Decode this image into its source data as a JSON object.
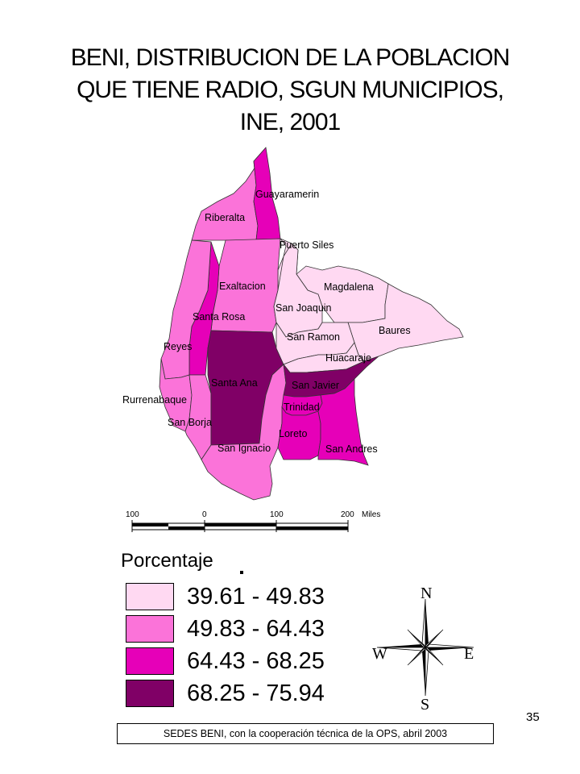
{
  "title": {
    "line1": "BENI, DISTRIBUCION DE LA POBLACION",
    "line2": "QUE TIENE RADIO, SGUN MUNICIPIOS,",
    "line3": "INE, 2001"
  },
  "colors": {
    "class1": "#ffd9f2",
    "class2": "#fb73d9",
    "class3": "#e600b8",
    "class4": "#800066",
    "outline": "#333333"
  },
  "municipalities": [
    {
      "name": "Guayaramerin",
      "class": 3
    },
    {
      "name": "Riberalta",
      "class": 2
    },
    {
      "name": "Puerto Siles",
      "class": 1
    },
    {
      "name": "Exaltacion",
      "class": 2
    },
    {
      "name": "Magdalena",
      "class": 1
    },
    {
      "name": "San Joaquin",
      "class": 1
    },
    {
      "name": "Baures",
      "class": 1
    },
    {
      "name": "Santa Rosa",
      "class": 3
    },
    {
      "name": "San Ramon",
      "class": 1
    },
    {
      "name": "Reyes",
      "class": 2
    },
    {
      "name": "Huacaraje",
      "class": 1
    },
    {
      "name": "Santa Ana",
      "class": 4
    },
    {
      "name": "San Javier",
      "class": 4
    },
    {
      "name": "Rurrenabaque",
      "class": 2
    },
    {
      "name": "Trinidad",
      "class": 3
    },
    {
      "name": "San Borja",
      "class": 2
    },
    {
      "name": "Loreto",
      "class": 3
    },
    {
      "name": "San Ignacio",
      "class": 2
    },
    {
      "name": "San Andres",
      "class": 3
    }
  ],
  "scale_bar": {
    "labels": [
      "100",
      "0",
      "100",
      "200"
    ],
    "unit": "Miles"
  },
  "legend": {
    "title": "Porcentaje",
    "items": [
      {
        "range": "39.61 - 49.83",
        "color": "#ffd9f2"
      },
      {
        "range": "49.83 - 64.43",
        "color": "#fb73d9"
      },
      {
        "range": "64.43 - 68.25",
        "color": "#e600b8"
      },
      {
        "range": "68.25 - 75.94",
        "color": "#800066"
      }
    ]
  },
  "compass": {
    "n": "N",
    "s": "S",
    "e": "E",
    "w": "W"
  },
  "page_number": "35",
  "source": "SEDES BENI, con la cooperación técnica de la OPS, abril  2003"
}
